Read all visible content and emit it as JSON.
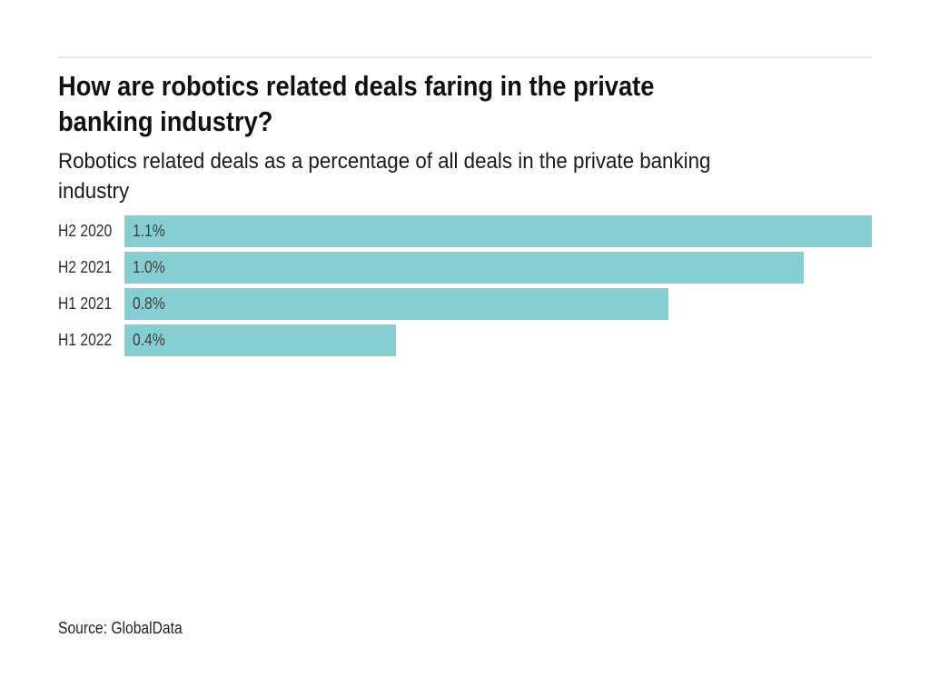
{
  "header": {
    "title_lines": [
      "How are robotics related deals faring in the private",
      "banking industry?"
    ],
    "subtitle_lines": [
      "Robotics related deals as a percentage of all deals in the private banking",
      "industry"
    ]
  },
  "chart_data": {
    "type": "bar",
    "orientation": "horizontal",
    "title": "How are robotics related deals faring in the private banking industry?",
    "subtitle": "Robotics related deals as a percentage of all deals in the private banking industry",
    "categories": [
      "H2 2020",
      "H2 2021",
      "H1 2021",
      "H1 2022"
    ],
    "values": [
      1.1,
      1.0,
      0.8,
      0.4
    ],
    "value_labels": [
      "1.1%",
      "1.0%",
      "0.8%",
      "0.4%"
    ],
    "xlabel": "",
    "ylabel": "",
    "xlim": [
      0,
      1.1
    ],
    "grid": false,
    "legend": false,
    "bar_color": "#85ced1"
  },
  "footer": {
    "source": "Source: GlobalData"
  },
  "colors": {
    "divider": "#e5e5e5",
    "title_text": "#111111",
    "subtitle_text": "#1a1a1a",
    "category_text": "#2d2d2d",
    "value_text": "#3f3f3f",
    "source_text": "#1f1f1f",
    "bar_color": "#85ced1"
  }
}
